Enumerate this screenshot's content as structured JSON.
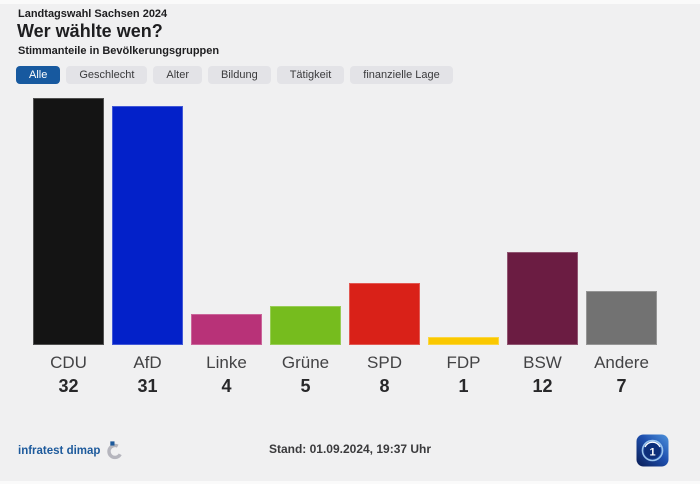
{
  "header": {
    "kicker": "Landtagswahl Sachsen 2024",
    "title": "Wer wählte wen?",
    "subtitle": "Stimmanteile in Bevölkerungsgruppen"
  },
  "tabs": [
    {
      "label": "Alle",
      "active": true
    },
    {
      "label": "Geschlecht",
      "active": false
    },
    {
      "label": "Alter",
      "active": false
    },
    {
      "label": "Bildung",
      "active": false
    },
    {
      "label": "Tätigkeit",
      "active": false
    },
    {
      "label": "finanzielle Lage",
      "active": false
    }
  ],
  "chart_data": {
    "type": "bar",
    "title": "Wer wählte wen? – Stimmanteile in Bevölkerungsgruppen",
    "categories": [
      "CDU",
      "AfD",
      "Linke",
      "Grüne",
      "SPD",
      "FDP",
      "BSW",
      "Andere"
    ],
    "values": [
      32,
      31,
      4,
      5,
      8,
      1,
      12,
      7
    ],
    "colors": [
      "#141414",
      "#0321c9",
      "#b83278",
      "#76bc1e",
      "#d92118",
      "#fac800",
      "#6b1c42",
      "#727272"
    ],
    "ylim": [
      0,
      32
    ],
    "grid": false,
    "legend": "none",
    "value_labels_position": "below-category"
  },
  "footer": {
    "source_label": "infratest dimap",
    "source_logo_icon": "infratest-dimap-ring-icon",
    "stand_text": "Stand: 01.09.2024, 19:37 Uhr",
    "broadcaster_logo_icon": "ard-tagesschau-logo-icon"
  },
  "colors": {
    "background": "#f0f0f1",
    "tab_active_bg": "#17599f",
    "tab_active_text": "#ffffff",
    "tab_inactive_bg": "#e3e3e7",
    "heading_text": "#1e1e20",
    "source_blue": "#1d5a9c",
    "stand_text": "#3a3a3c"
  }
}
